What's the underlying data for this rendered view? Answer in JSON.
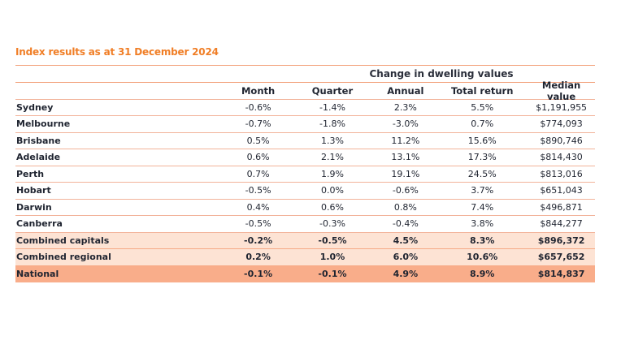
{
  "title": "Index results as at 31 December 2024",
  "group_header": "Change in dwelling values",
  "columns": [
    "",
    "Month",
    "Quarter",
    "Annual",
    "Total return",
    "Median value"
  ],
  "rows": [
    {
      "name": "Sydney",
      "month": "-0.6%",
      "quarter": "-1.4%",
      "annual": "2.3%",
      "total_return": "5.5%",
      "median": "$1,191,955"
    },
    {
      "name": "Melbourne",
      "month": "-0.7%",
      "quarter": "-1.8%",
      "annual": "-3.0%",
      "total_return": "0.7%",
      "median": "$774,093"
    },
    {
      "name": "Brisbane",
      "month": "0.5%",
      "quarter": "1.3%",
      "annual": "11.2%",
      "total_return": "15.6%",
      "median": "$890,746"
    },
    {
      "name": "Adelaide",
      "month": "0.6%",
      "quarter": "2.1%",
      "annual": "13.1%",
      "total_return": "17.3%",
      "median": "$814,430"
    },
    {
      "name": "Perth",
      "month": "0.7%",
      "quarter": "1.9%",
      "annual": "19.1%",
      "total_return": "24.5%",
      "median": "$813,016"
    },
    {
      "name": "Hobart",
      "month": "-0.5%",
      "quarter": "0.0%",
      "annual": "-0.6%",
      "total_return": "3.7%",
      "median": "$651,043"
    },
    {
      "name": "Darwin",
      "month": "0.4%",
      "quarter": "0.6%",
      "annual": "0.8%",
      "total_return": "7.4%",
      "median": "$496,871"
    },
    {
      "name": "Canberra",
      "month": "-0.5%",
      "quarter": "-0.3%",
      "annual": "-0.4%",
      "total_return": "3.8%",
      "median": "$844,277"
    },
    {
      "name": "Combined capitals",
      "month": "-0.2%",
      "quarter": "-0.5%",
      "annual": "4.5%",
      "total_return": "8.3%",
      "median": "$896,372"
    },
    {
      "name": "Combined regional",
      "month": "0.2%",
      "quarter": "1.0%",
      "annual": "6.0%",
      "total_return": "10.6%",
      "median": "$657,652"
    },
    {
      "name": "National",
      "month": "-0.1%",
      "quarter": "-0.1%",
      "annual": "4.9%",
      "total_return": "8.9%",
      "median": "$814,837"
    }
  ],
  "colors": {
    "accent": "#f07e26",
    "summary_bg": "#fde3d4",
    "national_bg": "#f9ad8a",
    "rule": "#f2a079"
  }
}
